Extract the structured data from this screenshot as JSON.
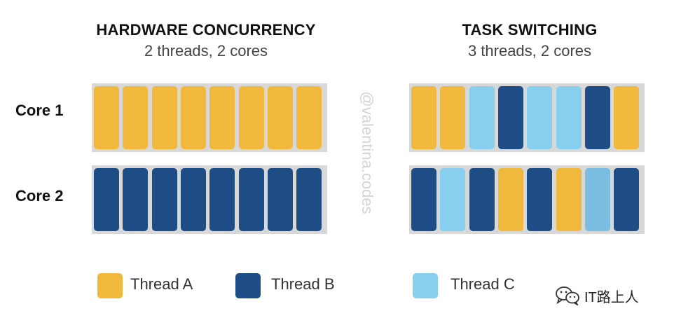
{
  "panels": {
    "left": {
      "title": "HARDWARE CONCURRENCY",
      "subtitle": "2 threads, 2 cores"
    },
    "right": {
      "title": "TASK SWITCHING",
      "subtitle": "3 threads, 2 cores"
    }
  },
  "rows": [
    "Core 1",
    "Core 2"
  ],
  "colors": {
    "A": "#f0b93e",
    "B": "#1e4d86",
    "C": "#88ceee",
    "C_alt": "#7abde0",
    "track": "#d8d8d8"
  },
  "hardware_concurrency": {
    "core1": [
      "A",
      "A",
      "A",
      "A",
      "A",
      "A",
      "A",
      "A"
    ],
    "core2": [
      "B",
      "B",
      "B",
      "B",
      "B",
      "B",
      "B",
      "B"
    ]
  },
  "task_switching": {
    "core1": [
      "A",
      "A",
      "C",
      "B",
      "C",
      "C",
      "B",
      "A"
    ],
    "core2": [
      "B",
      "C",
      "B",
      "A",
      "B",
      "A",
      "C_alt",
      "B"
    ]
  },
  "legend": [
    {
      "key": "A",
      "label": "Thread A"
    },
    {
      "key": "B",
      "label": "Thread B"
    },
    {
      "key": "C",
      "label": "Thread C"
    }
  ],
  "watermark": "@valentina.codes",
  "brand": {
    "text": "IT路上人",
    "icon": "wechat-icon"
  }
}
